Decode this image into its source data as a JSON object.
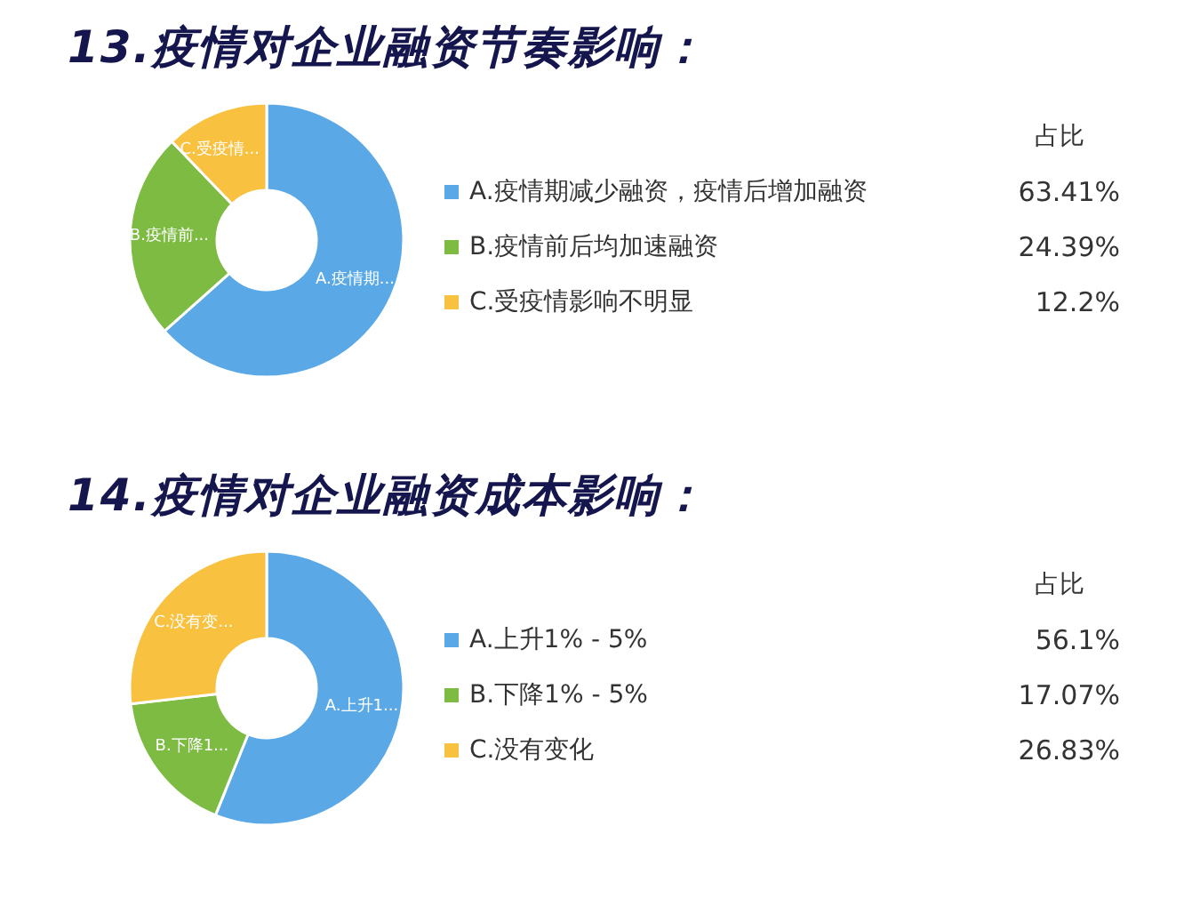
{
  "chart_data": [
    {
      "type": "donut",
      "title": "13.疫情对企业融资节奏影响：",
      "categories": [
        "A.疫情期减少融资，疫情后增加融资",
        "B.疫情前后均加速融资",
        "C.受疫情影响不明显"
      ],
      "values": [
        63.41,
        24.39,
        12.2
      ],
      "colors": [
        "#5aa9e6",
        "#7dbb42",
        "#f9c140"
      ],
      "value_labels": [
        "63.41%",
        "24.39%",
        "12.2%"
      ],
      "annotations": [
        {
          "text": "A.疫情期...",
          "x": "A.疫情期减少融资，疫情后增加融资"
        },
        {
          "text": "B.疫情前...",
          "x": "B.疫情前后均加速融资"
        },
        {
          "text": "C.受疫情...",
          "x": "C.受疫情影响不明显"
        }
      ],
      "legend_title": "占比",
      "legend": "right"
    },
    {
      "type": "donut",
      "title": "14.疫情对企业融资成本影响：",
      "categories": [
        "A.上升1% - 5%",
        "B.下降1% - 5%",
        "C.没有变化"
      ],
      "values": [
        56.1,
        17.07,
        26.83
      ],
      "colors": [
        "#5aa9e6",
        "#7dbb42",
        "#f9c140"
      ],
      "value_labels": [
        "56.1%",
        "17.07%",
        "26.83%"
      ],
      "annotations": [
        {
          "text": "A.上升1...",
          "x": "A.上升1% - 5%"
        },
        {
          "text": "B.下降1...",
          "x": "B.下降1% - 5%"
        },
        {
          "text": "C.没有变...",
          "x": "C.没有变化"
        }
      ],
      "legend_title": "占比",
      "legend": "right"
    }
  ]
}
